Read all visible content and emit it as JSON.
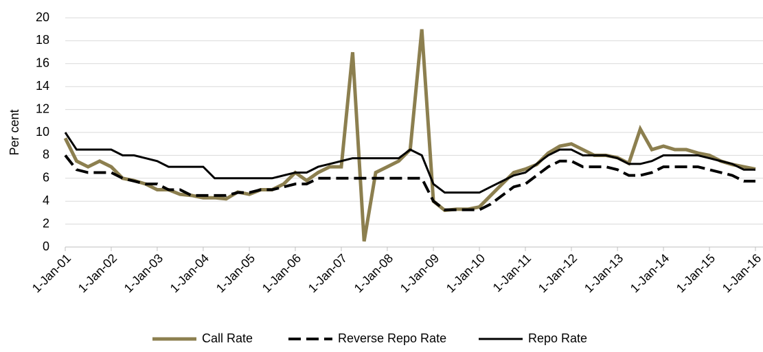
{
  "chart_data": {
    "type": "line",
    "y_label": "Per cent",
    "x": [
      "1-Jan-01",
      "1-Apr-01",
      "1-Jul-01",
      "1-Oct-01",
      "1-Jan-02",
      "1-Apr-02",
      "1-Jul-02",
      "1-Oct-02",
      "1-Jan-03",
      "1-Apr-03",
      "1-Jul-03",
      "1-Oct-03",
      "1-Jan-04",
      "1-Apr-04",
      "1-Jul-04",
      "1-Oct-04",
      "1-Jan-05",
      "1-Apr-05",
      "1-Jul-05",
      "1-Oct-05",
      "1-Jan-06",
      "1-Apr-06",
      "1-Jul-06",
      "1-Oct-06",
      "1-Jan-07",
      "1-Apr-07",
      "1-Jul-07",
      "1-Oct-07",
      "1-Jan-08",
      "1-Apr-08",
      "1-Jul-08",
      "1-Oct-08",
      "1-Jan-09",
      "1-Apr-09",
      "1-Jul-09",
      "1-Oct-09",
      "1-Jan-10",
      "1-Apr-10",
      "1-Jul-10",
      "1-Oct-10",
      "1-Jan-11",
      "1-Apr-11",
      "1-Jul-11",
      "1-Oct-11",
      "1-Jan-12",
      "1-Apr-12",
      "1-Jul-12",
      "1-Oct-12",
      "1-Jan-13",
      "1-Apr-13",
      "1-Jul-13",
      "1-Oct-13",
      "1-Jan-14",
      "1-Apr-14",
      "1-Jul-14",
      "1-Oct-14",
      "1-Jan-15",
      "1-Apr-15",
      "1-Jul-15",
      "1-Oct-15",
      "1-Jan-16"
    ],
    "series": [
      {
        "name": "Call Rate",
        "color": "#8c7f4f",
        "style": "solid",
        "width": 5,
        "values": [
          9.5,
          7.5,
          7,
          7.5,
          7,
          6,
          5.8,
          5.5,
          5,
          5,
          4.6,
          4.5,
          4.3,
          4.3,
          4.2,
          4.8,
          4.6,
          5,
          5,
          5.5,
          6.5,
          5.8,
          6.5,
          7,
          7,
          17,
          0.5,
          6.5,
          7,
          7.5,
          8.5,
          19,
          4,
          3.2,
          3.3,
          3.3,
          3.5,
          4.5,
          5.5,
          6.5,
          6.8,
          7.2,
          8.2,
          8.8,
          9,
          8.5,
          8,
          8,
          7.8,
          7.3,
          10.3,
          8.5,
          8.8,
          8.5,
          8.5,
          8.2,
          8,
          7.5,
          7.2,
          7,
          6.8
        ]
      },
      {
        "name": "Reverse Repo Rate",
        "color": "#000000",
        "style": "dashed",
        "width": 4,
        "values": [
          8,
          6.75,
          6.5,
          6.5,
          6.5,
          6,
          5.75,
          5.5,
          5.5,
          5,
          5,
          4.5,
          4.5,
          4.5,
          4.5,
          4.75,
          4.75,
          5,
          5,
          5.25,
          5.5,
          5.5,
          6,
          6,
          6,
          6,
          6,
          6,
          6,
          6,
          6,
          6,
          4,
          3.25,
          3.25,
          3.25,
          3.25,
          3.75,
          4.5,
          5.25,
          5.5,
          6.25,
          7,
          7.5,
          7.5,
          7,
          7,
          7,
          6.75,
          6.25,
          6.25,
          6.5,
          7,
          7,
          7,
          7,
          6.75,
          6.5,
          6.25,
          5.75,
          5.75
        ]
      },
      {
        "name": "Repo Rate",
        "color": "#000000",
        "style": "solid",
        "width": 3,
        "values": [
          10,
          8.5,
          8.5,
          8.5,
          8.5,
          8,
          8,
          7.75,
          7.5,
          7,
          7,
          7,
          7,
          6,
          6,
          6,
          6,
          6,
          6,
          6.25,
          6.5,
          6.5,
          7,
          7.25,
          7.5,
          7.75,
          7.75,
          7.75,
          7.75,
          7.75,
          8.5,
          8,
          5.5,
          4.75,
          4.75,
          4.75,
          4.75,
          5.25,
          5.75,
          6.25,
          6.5,
          7.25,
          8,
          8.5,
          8.5,
          8,
          8,
          8,
          7.75,
          7.25,
          7.25,
          7.5,
          8,
          8,
          8,
          8,
          7.75,
          7.5,
          7.25,
          6.75,
          6.75
        ]
      }
    ],
    "xlim": [
      "1-Jan-01",
      "1-Jan-16"
    ],
    "xticks": [
      "1-Jan-01",
      "1-Jan-02",
      "1-Jan-03",
      "1-Jan-04",
      "1-Jan-05",
      "1-Jan-06",
      "1-Jan-07",
      "1-Jan-08",
      "1-Jan-09",
      "1-Jan-10",
      "1-Jan-11",
      "1-Jan-12",
      "1-Jan-13",
      "1-Jan-14",
      "1-Jan-15",
      "1-Jan-16"
    ],
    "ylim": [
      0,
      20
    ],
    "yticks": [
      0,
      2,
      4,
      6,
      8,
      10,
      12,
      14,
      16,
      18,
      20
    ],
    "grid": true,
    "legend": "bottom"
  }
}
